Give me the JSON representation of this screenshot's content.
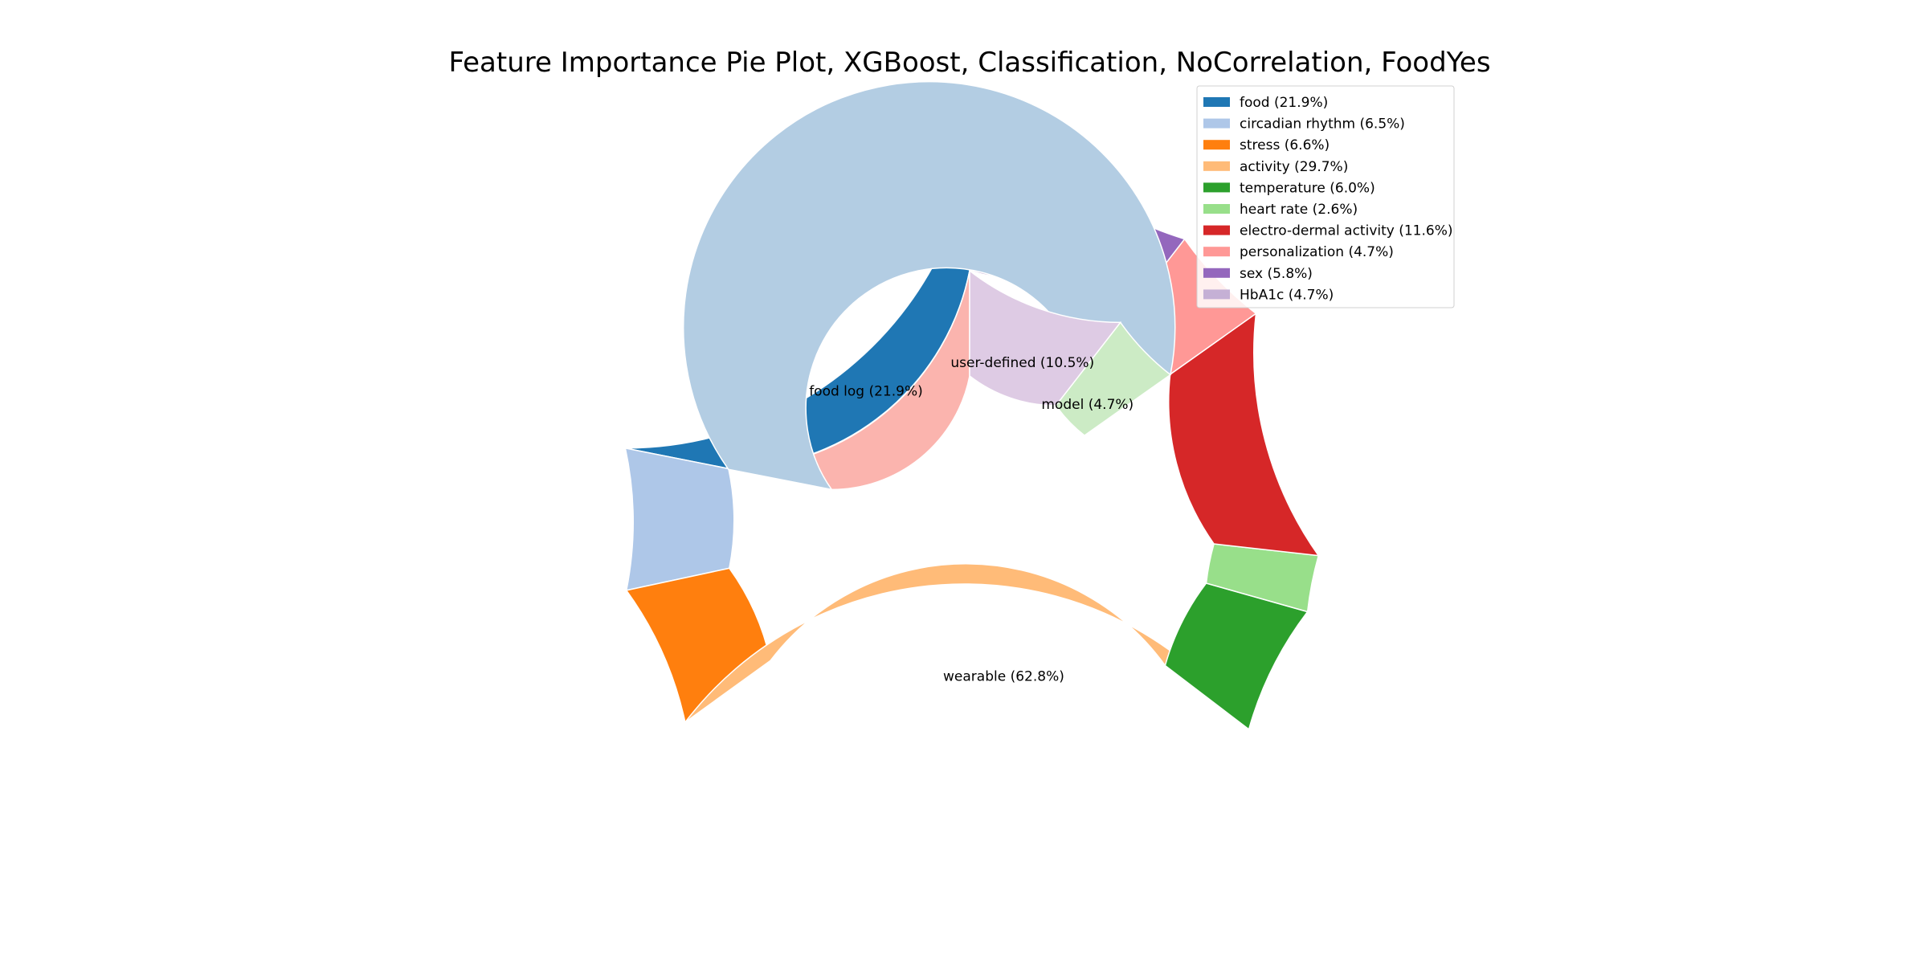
{
  "chart_data": {
    "type": "pie",
    "title": "Feature Importance Pie Plot, XGBoost, Classification, NoCorrelation, FoodYes",
    "legend_position": "top-right",
    "outer": {
      "categories": [
        "food",
        "circadian rhythm",
        "stress",
        "activity",
        "temperature",
        "heart rate",
        "electro-dermal activity",
        "personalization",
        "sex",
        "HbA1c"
      ],
      "values": [
        21.9,
        6.5,
        6.6,
        29.7,
        6.0,
        2.6,
        11.6,
        4.7,
        5.8,
        4.7
      ],
      "labels": [
        "food (21.9%)",
        "circadian rhythm (6.5%)",
        "stress (6.6%)",
        "activity (29.7%)",
        "temperature (6.0%)",
        "heart rate (2.6%)",
        "electro-dermal activity (11.6%)",
        "personalization (4.7%)",
        "sex (5.8%)",
        "HbA1c (4.7%)"
      ],
      "colors": [
        "#1f77b4",
        "#aec7e8",
        "#ff7f0e",
        "#ffbb78",
        "#2ca02c",
        "#98df8a",
        "#d62728",
        "#ff9896",
        "#9467bd",
        "#c5b0d5"
      ]
    },
    "inner": {
      "categories": [
        "food log",
        "wearable",
        "model",
        "user-defined"
      ],
      "values": [
        21.9,
        62.8,
        4.7,
        10.5
      ],
      "labels": [
        "food log (21.9%)",
        "wearable (62.8%)",
        "model (4.7%)",
        "user-defined (10.5%)"
      ],
      "colors": [
        "#fbb4ae",
        "#b3cde3",
        "#ccebc5",
        "#decbe4"
      ]
    }
  }
}
